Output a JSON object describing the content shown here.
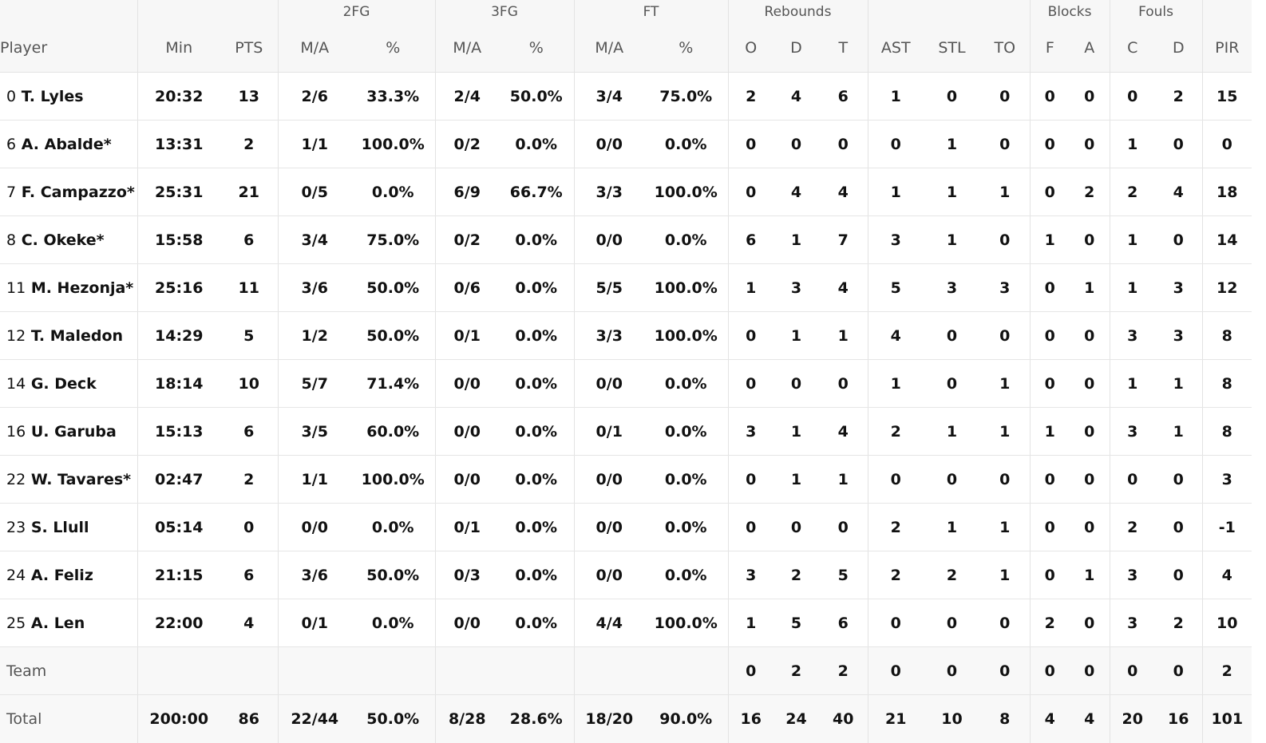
{
  "header": {
    "groups": {
      "fg2": "2FG",
      "fg3": "3FG",
      "ft": "FT",
      "rebounds": "Rebounds",
      "blocks": "Blocks",
      "fouls": "Fouls"
    },
    "columns": {
      "player": "Player",
      "min": "Min",
      "pts": "PTS",
      "fg2_ma": "M/A",
      "fg2_pct": "%",
      "fg3_ma": "M/A",
      "fg3_pct": "%",
      "ft_ma": "M/A",
      "ft_pct": "%",
      "reb_o": "O",
      "reb_d": "D",
      "reb_t": "T",
      "ast": "AST",
      "stl": "STL",
      "to": "TO",
      "blk_f": "F",
      "blk_a": "A",
      "foul_c": "C",
      "foul_d": "D",
      "pir": "PIR"
    }
  },
  "rows": [
    {
      "num": "0",
      "name": "T. Lyles",
      "min": "20:32",
      "pts": "13",
      "fg2_ma": "2/6",
      "fg2_pct": "33.3%",
      "fg3_ma": "2/4",
      "fg3_pct": "50.0%",
      "ft_ma": "3/4",
      "ft_pct": "75.0%",
      "reb_o": "2",
      "reb_d": "4",
      "reb_t": "6",
      "ast": "1",
      "stl": "0",
      "to": "0",
      "blk_f": "0",
      "blk_a": "0",
      "foul_c": "0",
      "foul_d": "2",
      "pir": "15"
    },
    {
      "num": "6",
      "name": "A. Abalde*",
      "min": "13:31",
      "pts": "2",
      "fg2_ma": "1/1",
      "fg2_pct": "100.0%",
      "fg3_ma": "0/2",
      "fg3_pct": "0.0%",
      "ft_ma": "0/0",
      "ft_pct": "0.0%",
      "reb_o": "0",
      "reb_d": "0",
      "reb_t": "0",
      "ast": "0",
      "stl": "1",
      "to": "0",
      "blk_f": "0",
      "blk_a": "0",
      "foul_c": "1",
      "foul_d": "0",
      "pir": "0"
    },
    {
      "num": "7",
      "name": "F. Campazzo*",
      "min": "25:31",
      "pts": "21",
      "fg2_ma": "0/5",
      "fg2_pct": "0.0%",
      "fg3_ma": "6/9",
      "fg3_pct": "66.7%",
      "ft_ma": "3/3",
      "ft_pct": "100.0%",
      "reb_o": "0",
      "reb_d": "4",
      "reb_t": "4",
      "ast": "1",
      "stl": "1",
      "to": "1",
      "blk_f": "0",
      "blk_a": "2",
      "foul_c": "2",
      "foul_d": "4",
      "pir": "18"
    },
    {
      "num": "8",
      "name": "C. Okeke*",
      "min": "15:58",
      "pts": "6",
      "fg2_ma": "3/4",
      "fg2_pct": "75.0%",
      "fg3_ma": "0/2",
      "fg3_pct": "0.0%",
      "ft_ma": "0/0",
      "ft_pct": "0.0%",
      "reb_o": "6",
      "reb_d": "1",
      "reb_t": "7",
      "ast": "3",
      "stl": "1",
      "to": "0",
      "blk_f": "1",
      "blk_a": "0",
      "foul_c": "1",
      "foul_d": "0",
      "pir": "14"
    },
    {
      "num": "11",
      "name": "M. Hezonja*",
      "min": "25:16",
      "pts": "11",
      "fg2_ma": "3/6",
      "fg2_pct": "50.0%",
      "fg3_ma": "0/6",
      "fg3_pct": "0.0%",
      "ft_ma": "5/5",
      "ft_pct": "100.0%",
      "reb_o": "1",
      "reb_d": "3",
      "reb_t": "4",
      "ast": "5",
      "stl": "3",
      "to": "3",
      "blk_f": "0",
      "blk_a": "1",
      "foul_c": "1",
      "foul_d": "3",
      "pir": "12"
    },
    {
      "num": "12",
      "name": "T. Maledon",
      "min": "14:29",
      "pts": "5",
      "fg2_ma": "1/2",
      "fg2_pct": "50.0%",
      "fg3_ma": "0/1",
      "fg3_pct": "0.0%",
      "ft_ma": "3/3",
      "ft_pct": "100.0%",
      "reb_o": "0",
      "reb_d": "1",
      "reb_t": "1",
      "ast": "4",
      "stl": "0",
      "to": "0",
      "blk_f": "0",
      "blk_a": "0",
      "foul_c": "3",
      "foul_d": "3",
      "pir": "8"
    },
    {
      "num": "14",
      "name": "G. Deck",
      "min": "18:14",
      "pts": "10",
      "fg2_ma": "5/7",
      "fg2_pct": "71.4%",
      "fg3_ma": "0/0",
      "fg3_pct": "0.0%",
      "ft_ma": "0/0",
      "ft_pct": "0.0%",
      "reb_o": "0",
      "reb_d": "0",
      "reb_t": "0",
      "ast": "1",
      "stl": "0",
      "to": "1",
      "blk_f": "0",
      "blk_a": "0",
      "foul_c": "1",
      "foul_d": "1",
      "pir": "8"
    },
    {
      "num": "16",
      "name": "U. Garuba",
      "min": "15:13",
      "pts": "6",
      "fg2_ma": "3/5",
      "fg2_pct": "60.0%",
      "fg3_ma": "0/0",
      "fg3_pct": "0.0%",
      "ft_ma": "0/1",
      "ft_pct": "0.0%",
      "reb_o": "3",
      "reb_d": "1",
      "reb_t": "4",
      "ast": "2",
      "stl": "1",
      "to": "1",
      "blk_f": "1",
      "blk_a": "0",
      "foul_c": "3",
      "foul_d": "1",
      "pir": "8"
    },
    {
      "num": "22",
      "name": "W. Tavares*",
      "min": "02:47",
      "pts": "2",
      "fg2_ma": "1/1",
      "fg2_pct": "100.0%",
      "fg3_ma": "0/0",
      "fg3_pct": "0.0%",
      "ft_ma": "0/0",
      "ft_pct": "0.0%",
      "reb_o": "0",
      "reb_d": "1",
      "reb_t": "1",
      "ast": "0",
      "stl": "0",
      "to": "0",
      "blk_f": "0",
      "blk_a": "0",
      "foul_c": "0",
      "foul_d": "0",
      "pir": "3"
    },
    {
      "num": "23",
      "name": "S. Llull",
      "min": "05:14",
      "pts": "0",
      "fg2_ma": "0/0",
      "fg2_pct": "0.0%",
      "fg3_ma": "0/1",
      "fg3_pct": "0.0%",
      "ft_ma": "0/0",
      "ft_pct": "0.0%",
      "reb_o": "0",
      "reb_d": "0",
      "reb_t": "0",
      "ast": "2",
      "stl": "1",
      "to": "1",
      "blk_f": "0",
      "blk_a": "0",
      "foul_c": "2",
      "foul_d": "0",
      "pir": "-1"
    },
    {
      "num": "24",
      "name": "A. Feliz",
      "min": "21:15",
      "pts": "6",
      "fg2_ma": "3/6",
      "fg2_pct": "50.0%",
      "fg3_ma": "0/3",
      "fg3_pct": "0.0%",
      "ft_ma": "0/0",
      "ft_pct": "0.0%",
      "reb_o": "3",
      "reb_d": "2",
      "reb_t": "5",
      "ast": "2",
      "stl": "2",
      "to": "1",
      "blk_f": "0",
      "blk_a": "1",
      "foul_c": "3",
      "foul_d": "0",
      "pir": "4"
    },
    {
      "num": "25",
      "name": "A. Len",
      "min": "22:00",
      "pts": "4",
      "fg2_ma": "0/1",
      "fg2_pct": "0.0%",
      "fg3_ma": "0/0",
      "fg3_pct": "0.0%",
      "ft_ma": "4/4",
      "ft_pct": "100.0%",
      "reb_o": "1",
      "reb_d": "5",
      "reb_t": "6",
      "ast": "0",
      "stl": "0",
      "to": "0",
      "blk_f": "2",
      "blk_a": "0",
      "foul_c": "3",
      "foul_d": "2",
      "pir": "10"
    }
  ],
  "team": {
    "label": "Team",
    "reb_o": "0",
    "reb_d": "2",
    "reb_t": "2",
    "ast": "0",
    "stl": "0",
    "to": "0",
    "blk_f": "0",
    "blk_a": "0",
    "foul_c": "0",
    "foul_d": "0",
    "pir": "2"
  },
  "total": {
    "label": "Total",
    "min": "200:00",
    "pts": "86",
    "fg2_ma": "22/44",
    "fg2_pct": "50.0%",
    "fg3_ma": "8/28",
    "fg3_pct": "28.6%",
    "ft_ma": "18/20",
    "ft_pct": "90.0%",
    "reb_o": "16",
    "reb_d": "24",
    "reb_t": "40",
    "ast": "21",
    "stl": "10",
    "to": "8",
    "blk_f": "4",
    "blk_a": "4",
    "foul_c": "20",
    "foul_d": "16",
    "pir": "101"
  }
}
